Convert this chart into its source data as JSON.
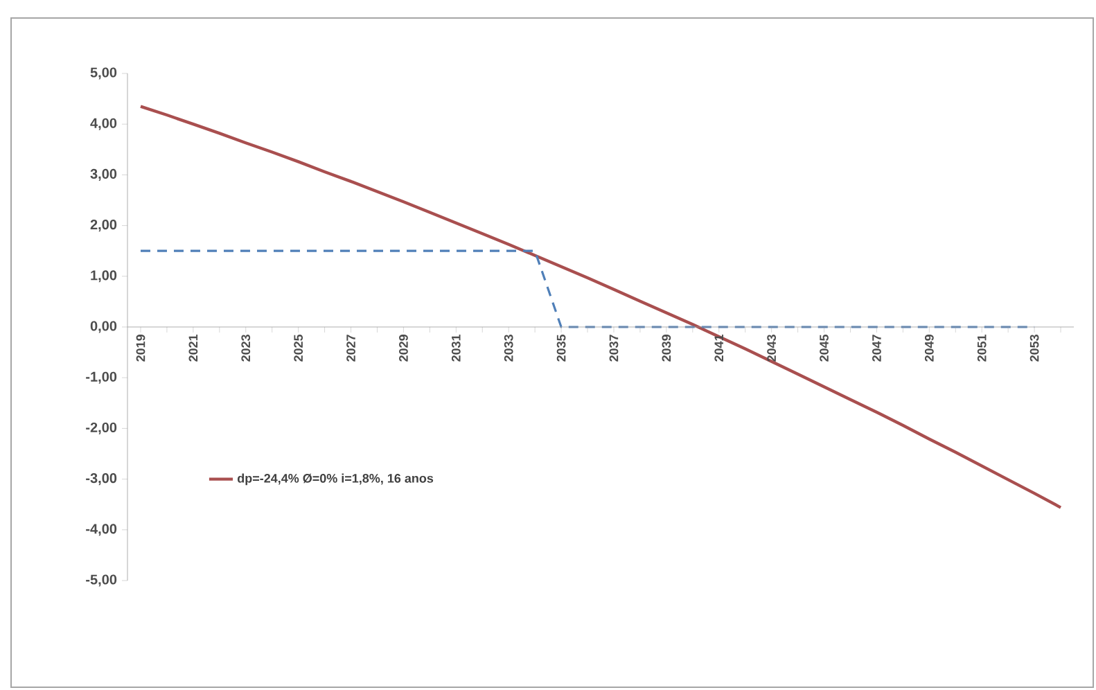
{
  "chart_data": {
    "type": "line",
    "categories": [
      "2019",
      null,
      "2021",
      null,
      "2023",
      null,
      "2025",
      null,
      "2027",
      null,
      "2029",
      null,
      "2031",
      null,
      "2033",
      null,
      "2035",
      null,
      "2037",
      null,
      "2039",
      null,
      "2041",
      null,
      "2043",
      null,
      "2045",
      null,
      "2047",
      null,
      "2049",
      null,
      "2051",
      null,
      "2053",
      null
    ],
    "series": [
      {
        "name": "dp=-24,4% Ø=0% i=1,8%, 16 anos",
        "color": "#a94f4f",
        "line_style": "solid",
        "values": [
          4.35,
          4.18,
          4.0,
          3.82,
          3.63,
          3.45,
          3.26,
          3.06,
          2.87,
          2.67,
          2.47,
          2.26,
          2.05,
          1.84,
          1.63,
          1.41,
          1.19,
          0.97,
          0.74,
          0.51,
          0.28,
          0.05,
          -0.19,
          -0.43,
          -0.68,
          -0.93,
          -1.18,
          -1.43,
          -1.68,
          -1.94,
          -2.21,
          -2.47,
          -2.74,
          -3.01,
          -3.28,
          -3.56
        ]
      },
      {
        "color": "#4f7fb8",
        "line_style": "dashed",
        "values": [
          1.5,
          1.5,
          1.5,
          1.5,
          1.5,
          1.5,
          1.5,
          1.5,
          1.5,
          1.5,
          1.5,
          1.5,
          1.5,
          1.5,
          1.5,
          1.5,
          0,
          0,
          0,
          0,
          0,
          0,
          0,
          0,
          0,
          0,
          0,
          0,
          0,
          0,
          0,
          0,
          0,
          0,
          0,
          null
        ]
      }
    ],
    "ylim": [
      -5,
      5
    ],
    "yticks": [
      {
        "value": -5,
        "label": "-5,00"
      },
      {
        "value": -4,
        "label": "-4,00"
      },
      {
        "value": -3,
        "label": "-3,00"
      },
      {
        "value": -2,
        "label": "-2,00"
      },
      {
        "value": -1,
        "label": "-1,00"
      },
      {
        "value": 0,
        "label": "0,00"
      },
      {
        "value": 1,
        "label": "1,00"
      },
      {
        "value": 2,
        "label": "2,00"
      },
      {
        "value": 3,
        "label": "3,00"
      },
      {
        "value": 4,
        "label": "4,00"
      },
      {
        "value": 5,
        "label": "5,00"
      }
    ],
    "grid": false,
    "legend": "bottom left",
    "marker": "none"
  }
}
